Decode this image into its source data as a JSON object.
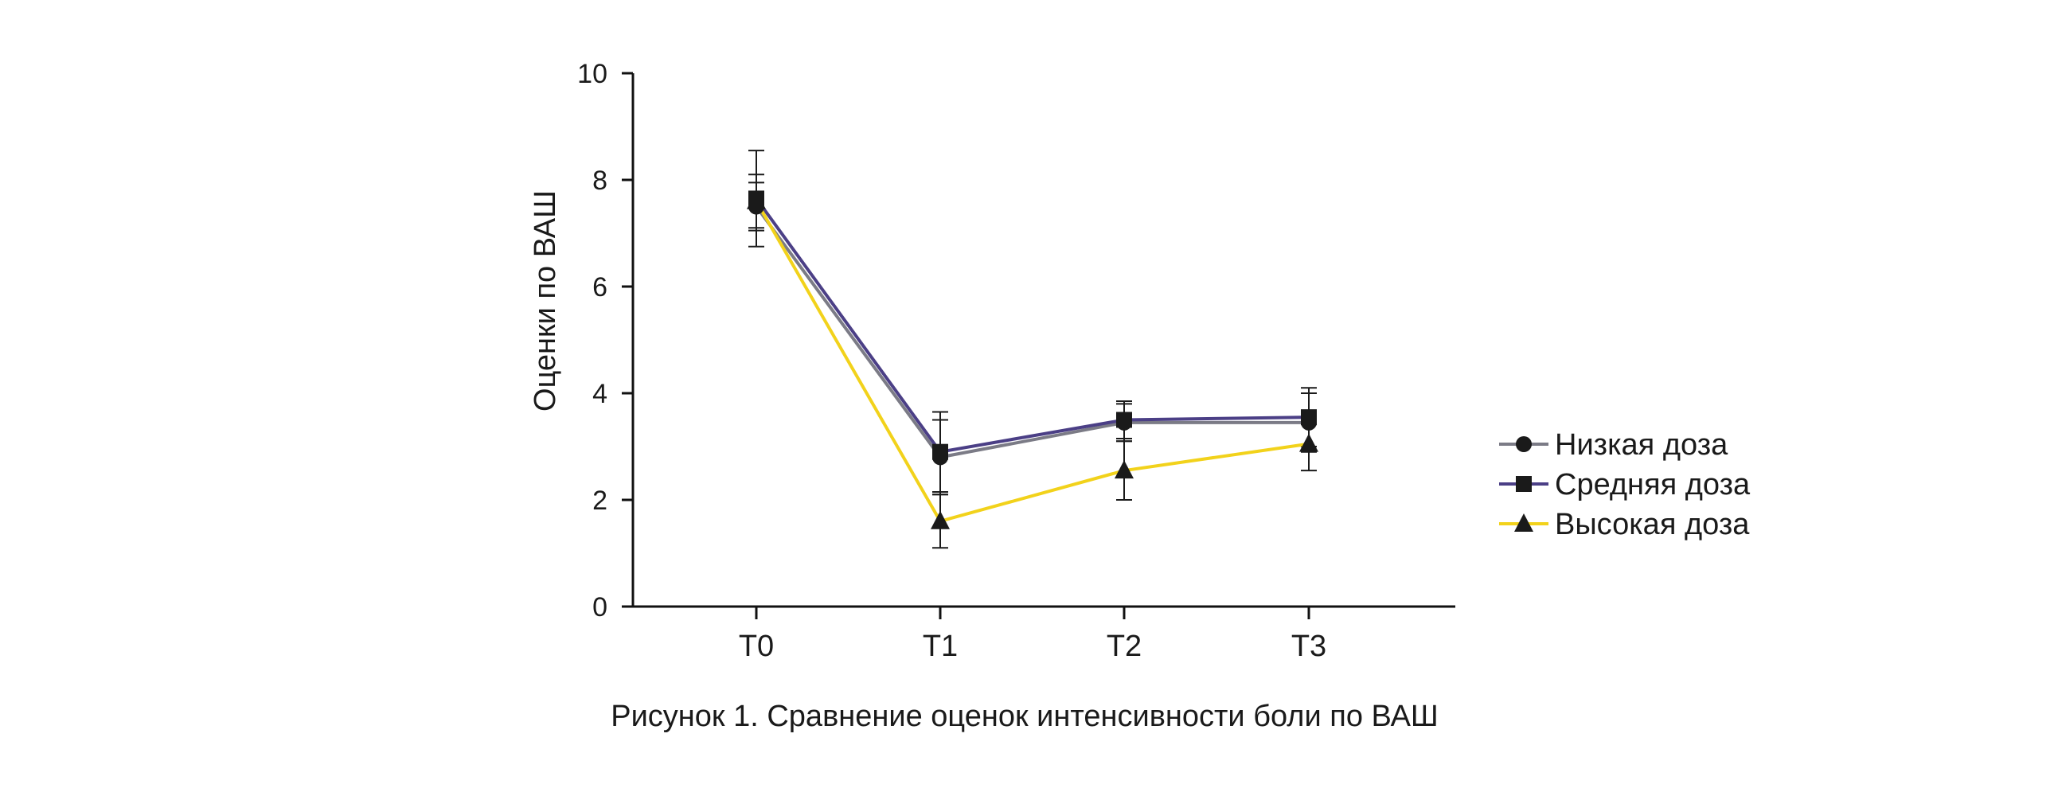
{
  "caption": "Рисунок 1. Сравнение оценок интенсивности боли по ВАШ",
  "chart_data": {
    "type": "line",
    "ylabel": "Оценки по ВАШ",
    "xlabel": "",
    "categories": [
      "T0",
      "T1",
      "T2",
      "T3"
    ],
    "ylim": [
      0,
      10
    ],
    "yticks": [
      0,
      2,
      4,
      6,
      8,
      10
    ],
    "grid": false,
    "legend_position": "right",
    "series": [
      {
        "name": "Низкая доза",
        "color": "#7b7b86",
        "marker": "circle",
        "values": [
          7.5,
          2.8,
          3.45,
          3.45
        ],
        "error": [
          0.45,
          0.7,
          0.35,
          0.55
        ]
      },
      {
        "name": "Средняя доза",
        "color": "#4b3f86",
        "marker": "square",
        "values": [
          7.65,
          2.9,
          3.5,
          3.55
        ],
        "error": [
          0.9,
          0.75,
          0.35,
          0.55
        ]
      },
      {
        "name": "Высокая доза",
        "color": "#f2d21b",
        "marker": "triangle",
        "values": [
          7.6,
          1.6,
          2.55,
          3.05
        ],
        "error": [
          0.5,
          0.5,
          0.55,
          0.5
        ]
      }
    ]
  }
}
